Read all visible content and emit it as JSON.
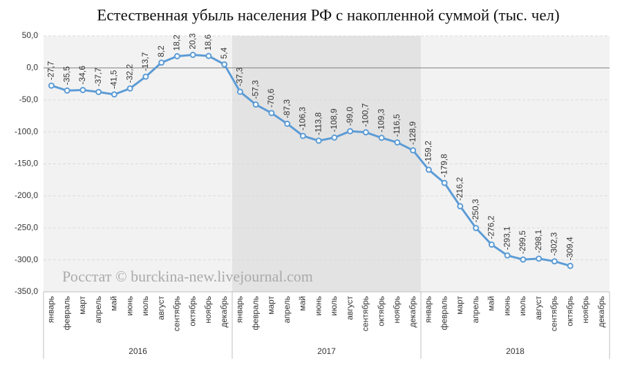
{
  "chart_data": {
    "type": "line",
    "title": "Естественная убыль населения РФ с накопленной суммой (тыс. чел)",
    "annotation": "Росстат © burckina-new.livejournal.com",
    "categories": [
      "январь",
      "февраль",
      "март",
      "апрель",
      "май",
      "июнь",
      "июль",
      "август",
      "сентябрь",
      "октябрь",
      "ноябрь",
      "декабрь",
      "январь",
      "февраль",
      "март",
      "апрель",
      "май",
      "июнь",
      "июль",
      "август",
      "сентябрь",
      "октябрь",
      "ноябрь",
      "декабрь",
      "январь",
      "февраль",
      "март",
      "апрель",
      "май",
      "июнь",
      "июль",
      "август",
      "сентябрь",
      "октябрь",
      "ноябрь",
      "декабрь"
    ],
    "groups": [
      "2016",
      "2017",
      "2018"
    ],
    "group_colors": [
      "#f2f2f2",
      "#e3e3e3",
      "#f2f2f2"
    ],
    "series": [
      {
        "name": "Естественная убыль",
        "color": "#5b9bd5",
        "values": [
          -27.7,
          -35.5,
          -34.6,
          -37.7,
          -41.5,
          -32.2,
          -13.7,
          8.2,
          18.2,
          20.3,
          18.6,
          5.4,
          -37.3,
          -57.3,
          -70.6,
          -87.3,
          -106.3,
          -113.8,
          -108.9,
          -99.0,
          -100.7,
          -109.3,
          -116.5,
          -128.9,
          -159.2,
          -179.8,
          -216.2,
          -250.3,
          -276.2,
          -293.1,
          -299.5,
          -298.1,
          -302.3,
          -309.4,
          null,
          null
        ],
        "value_labels": [
          "-27,7",
          "-35,5",
          "-34,6",
          "-37,7",
          "-41,5",
          "-32,2",
          "-13,7",
          "8,2",
          "18,2",
          "20,3",
          "18,6",
          "5,4",
          "-37,3",
          "-57,3",
          "-70,6",
          "-87,3",
          "-106,3",
          "-113,8",
          "-108,9",
          "-99,0",
          "-100,7",
          "-109,3",
          "-116,5",
          "-128,9",
          "-159,2",
          "-179,8",
          "-216,2",
          "-250,3",
          "-276,2",
          "-293,1",
          "-299,5",
          "-298,1",
          "-302,3",
          "-309,4",
          null,
          null
        ]
      }
    ],
    "ylim": [
      -350,
      50
    ],
    "yticks": [
      {
        "value": 50,
        "label": "50,0"
      },
      {
        "value": 0,
        "label": "0,0"
      },
      {
        "value": -50,
        "label": "-50,0"
      },
      {
        "value": -100,
        "label": "-100,0"
      },
      {
        "value": -150,
        "label": "-150,0"
      },
      {
        "value": -200,
        "label": "-200,0"
      },
      {
        "value": -250,
        "label": "-250,0"
      },
      {
        "value": -300,
        "label": "-300,0"
      },
      {
        "value": -350,
        "label": "-350,0"
      }
    ],
    "grid": true
  }
}
